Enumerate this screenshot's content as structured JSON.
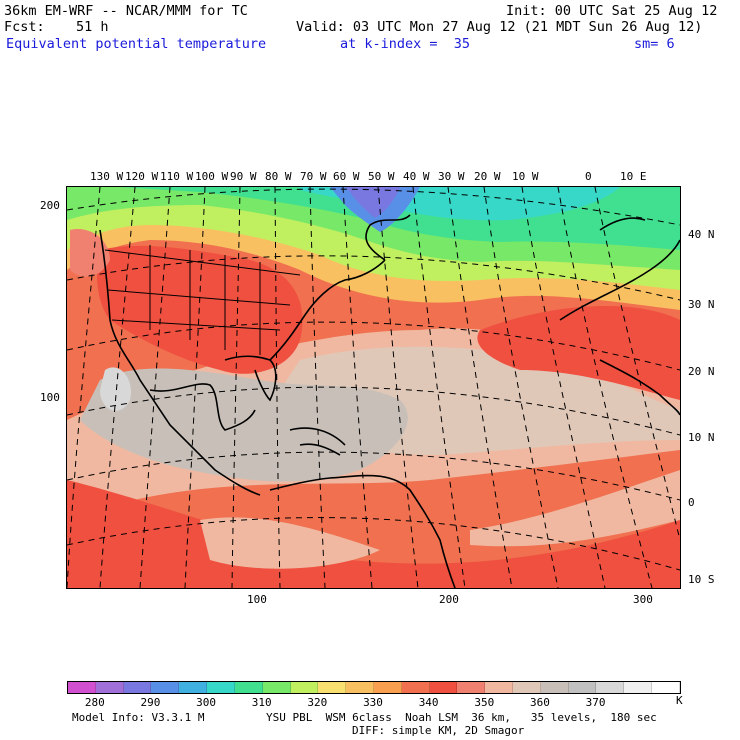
{
  "header": {
    "model": "36km EM-WRF -- NCAR/MMM for TC",
    "init": "Init: 00 UTC Sat 25 Aug 12",
    "fcst_label": "Fcst:",
    "fcst_value": "51 h",
    "valid": "Valid: 03 UTC Mon 27 Aug 12 (21 MDT Sun 26 Aug 12)",
    "field": "Equivalent potential temperature",
    "level": "at k-index =  35",
    "smoothing": "sm= 6"
  },
  "map": {
    "top_lon_labels": [
      "130 W",
      "120 W",
      "110 W",
      "100 W",
      "90 W",
      "80 W",
      "70 W",
      "60 W",
      "50 W",
      "40 W",
      "30 W",
      "20 W",
      "10 W",
      "0",
      "10 E"
    ],
    "right_lat_labels": [
      "40 N",
      "30 N",
      "20 N",
      "10 N",
      "0",
      "10 S"
    ],
    "left_grid_labels": [
      "200",
      "100"
    ],
    "bottom_grid_labels": [
      "100",
      "200",
      "300"
    ]
  },
  "colorbar": {
    "colors": [
      "#d050d0",
      "#a070d8",
      "#7878e0",
      "#5890e8",
      "#40b0e0",
      "#38d8c8",
      "#40e090",
      "#78e868",
      "#c0f060",
      "#f8e070",
      "#f8c060",
      "#f8a050",
      "#f07050",
      "#f05040",
      "#f08070",
      "#f0b8a0",
      "#e0c8b8",
      "#c8c0b8",
      "#c0c0c0",
      "#d8d8d8",
      "#f0f0f0",
      "#ffffff"
    ],
    "labels": [
      "280",
      "290",
      "300",
      "310",
      "320",
      "330",
      "340",
      "350",
      "360",
      "370"
    ],
    "unit": "K"
  },
  "footer": {
    "model_info": "Model Info: V3.3.1 M",
    "physics": "YSU PBL  WSM 6class  Noah LSM  36 km,   35 levels,  180 sec",
    "diff": "DIFF: simple KM, 2D Smagor"
  }
}
